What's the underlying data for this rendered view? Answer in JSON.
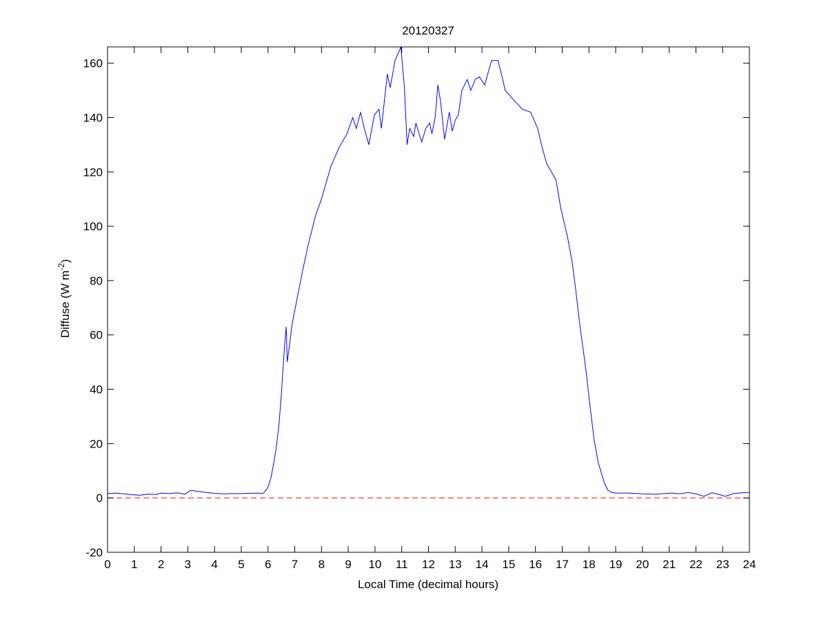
{
  "chart_data": {
    "type": "line",
    "title": "20120327",
    "xlabel": "Local Time (decimal hours)",
    "ylabel": "Diffuse (W m",
    "ylabel_superscript": "-2",
    "ylabel_close": ")",
    "xlim": [
      0,
      24
    ],
    "ylim": [
      -20,
      166
    ],
    "xticks": [
      "0",
      "1",
      "2",
      "3",
      "4",
      "5",
      "6",
      "7",
      "8",
      "9",
      "10",
      "11",
      "12",
      "13",
      "14",
      "15",
      "16",
      "17",
      "18",
      "19",
      "20",
      "21",
      "22",
      "23",
      "24"
    ],
    "yticks": [
      "-20",
      "0",
      "20",
      "40",
      "60",
      "80",
      "100",
      "120",
      "140",
      "160"
    ],
    "grid": false,
    "series": [
      {
        "color": "#0000ff",
        "points": [
          [
            0,
            1.6
          ],
          [
            0.3,
            1.8
          ],
          [
            0.6,
            1.5
          ],
          [
            0.9,
            1.2
          ],
          [
            1.2,
            1.0
          ],
          [
            1.5,
            1.4
          ],
          [
            1.8,
            1.3
          ],
          [
            2.0,
            1.8
          ],
          [
            2.3,
            1.6
          ],
          [
            2.6,
            1.9
          ],
          [
            2.9,
            1.4
          ],
          [
            3.1,
            2.8
          ],
          [
            3.4,
            2.4
          ],
          [
            3.7,
            2.0
          ],
          [
            4.0,
            1.7
          ],
          [
            4.3,
            1.5
          ],
          [
            4.7,
            1.6
          ],
          [
            5.0,
            1.6
          ],
          [
            5.3,
            1.7
          ],
          [
            5.6,
            1.8
          ],
          [
            5.8,
            1.6
          ],
          [
            5.9,
            2.5
          ],
          [
            6.0,
            4
          ],
          [
            6.1,
            7
          ],
          [
            6.2,
            12
          ],
          [
            6.3,
            18
          ],
          [
            6.4,
            26
          ],
          [
            6.5,
            38
          ],
          [
            6.55,
            46
          ],
          [
            6.62,
            56
          ],
          [
            6.68,
            63
          ],
          [
            6.72,
            50
          ],
          [
            6.8,
            56
          ],
          [
            6.9,
            64
          ],
          [
            7.06,
            72
          ],
          [
            7.3,
            84
          ],
          [
            7.5,
            93
          ],
          [
            7.78,
            104
          ],
          [
            8.0,
            110
          ],
          [
            8.35,
            122
          ],
          [
            8.66,
            129
          ],
          [
            8.95,
            134
          ],
          [
            9.17,
            140
          ],
          [
            9.3,
            136
          ],
          [
            9.46,
            142
          ],
          [
            9.6,
            136
          ],
          [
            9.77,
            130
          ],
          [
            9.98,
            141
          ],
          [
            10.15,
            143
          ],
          [
            10.24,
            136
          ],
          [
            10.46,
            156
          ],
          [
            10.57,
            151
          ],
          [
            10.75,
            161
          ],
          [
            10.97,
            166
          ],
          [
            11.1,
            151
          ],
          [
            11.2,
            130
          ],
          [
            11.3,
            136
          ],
          [
            11.45,
            133
          ],
          [
            11.53,
            138
          ],
          [
            11.65,
            134
          ],
          [
            11.75,
            131
          ],
          [
            11.9,
            136
          ],
          [
            12.04,
            138
          ],
          [
            12.13,
            134
          ],
          [
            12.25,
            140
          ],
          [
            12.35,
            152
          ],
          [
            12.45,
            146
          ],
          [
            12.6,
            132
          ],
          [
            12.78,
            142
          ],
          [
            12.89,
            135
          ],
          [
            13.0,
            139
          ],
          [
            13.12,
            141
          ],
          [
            13.25,
            150
          ],
          [
            13.45,
            154
          ],
          [
            13.58,
            150
          ],
          [
            13.75,
            154
          ],
          [
            13.9,
            155
          ],
          [
            14.1,
            152
          ],
          [
            14.36,
            161
          ],
          [
            14.6,
            161
          ],
          [
            14.75,
            155
          ],
          [
            14.87,
            150
          ],
          [
            15.05,
            148
          ],
          [
            15.23,
            146
          ],
          [
            15.52,
            143
          ],
          [
            15.82,
            142
          ],
          [
            16.08,
            136
          ],
          [
            16.25,
            129
          ],
          [
            16.42,
            123
          ],
          [
            16.6,
            120
          ],
          [
            16.77,
            117
          ],
          [
            16.94,
            107
          ],
          [
            17.2,
            96
          ],
          [
            17.37,
            87
          ],
          [
            17.5,
            77
          ],
          [
            17.63,
            66
          ],
          [
            17.9,
            46
          ],
          [
            18.05,
            33
          ],
          [
            18.2,
            21
          ],
          [
            18.35,
            13
          ],
          [
            18.5,
            8
          ],
          [
            18.6,
            5
          ],
          [
            18.7,
            3
          ],
          [
            18.85,
            2
          ],
          [
            19.0,
            1.8
          ],
          [
            19.5,
            1.8
          ],
          [
            20.0,
            1.5
          ],
          [
            20.5,
            1.4
          ],
          [
            20.8,
            1.6
          ],
          [
            21.1,
            1.8
          ],
          [
            21.4,
            1.5
          ],
          [
            21.7,
            2.0
          ],
          [
            22.0,
            1.5
          ],
          [
            22.3,
            0.6
          ],
          [
            22.6,
            1.9
          ],
          [
            22.9,
            1.2
          ],
          [
            23.1,
            0.6
          ],
          [
            23.4,
            1.6
          ],
          [
            23.7,
            1.9
          ],
          [
            24.0,
            2.0
          ]
        ]
      }
    ],
    "reference_line": {
      "y": 0,
      "color": "#ff0000",
      "style": "dashed"
    }
  }
}
